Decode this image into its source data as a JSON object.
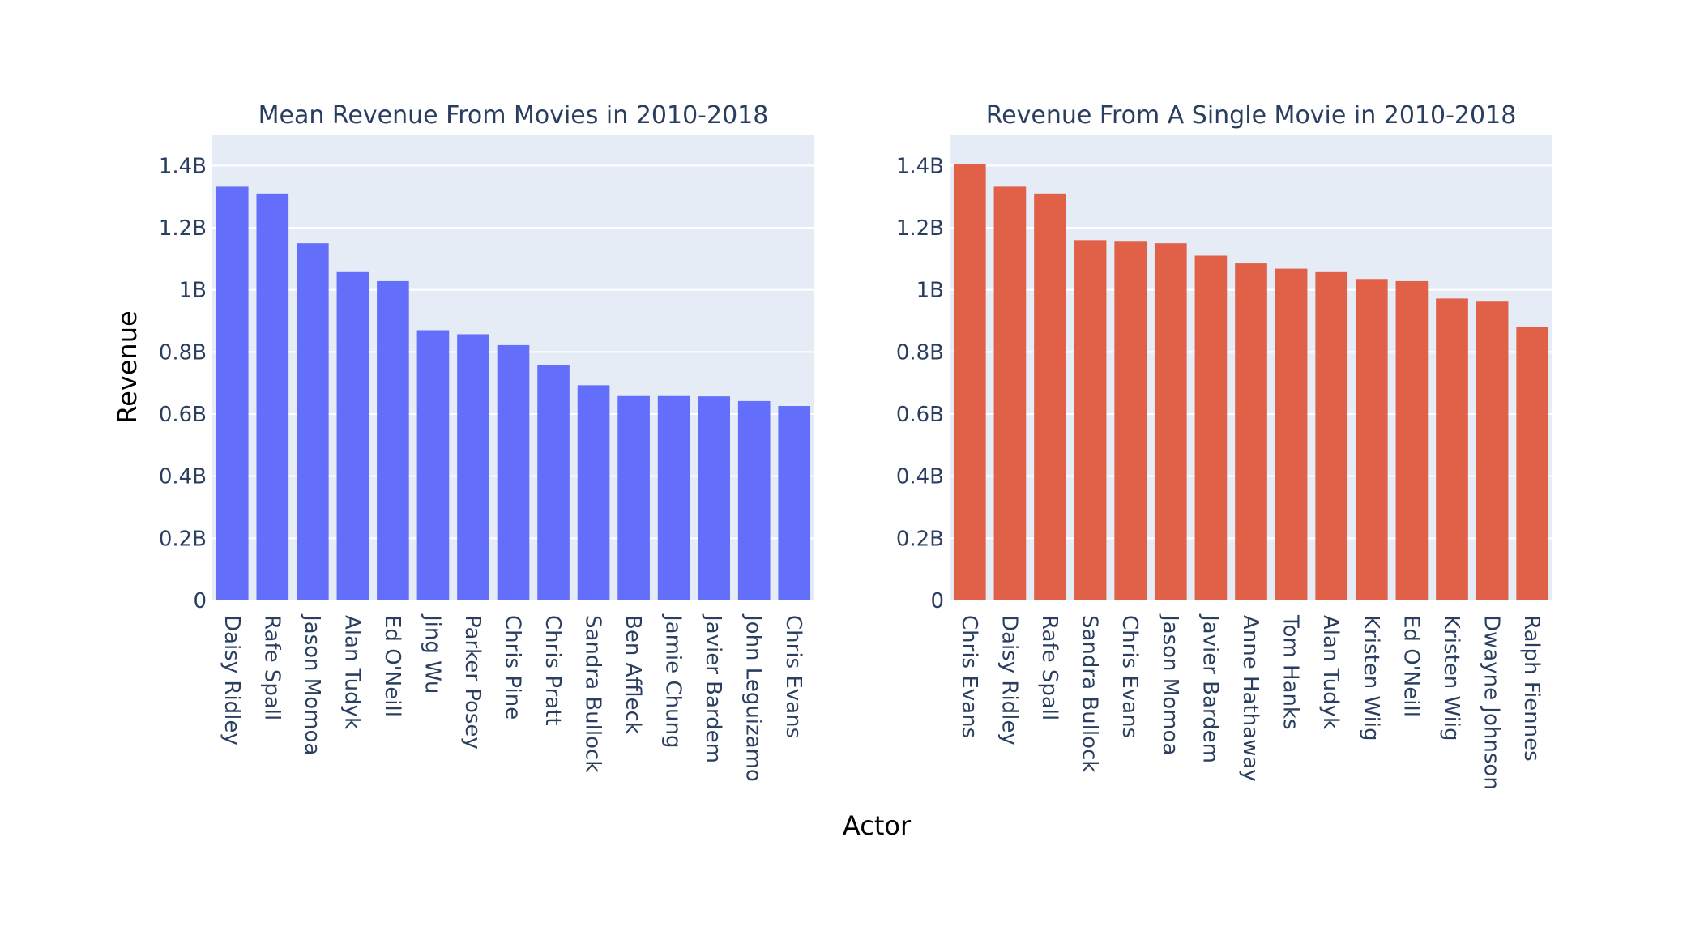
{
  "figure": {
    "xlabel": "Actor",
    "ylabel": "Revenue",
    "plot_bg": "#e5ecf6",
    "grid_color": "#ffffff",
    "text_color": "#2a3f5f"
  },
  "chart_data": [
    {
      "type": "bar",
      "title": "Mean Revenue From Movies in 2010-2018",
      "xlabel": "Actor",
      "ylabel": "Revenue",
      "color": "#636efa",
      "ylim": [
        0,
        1500000000
      ],
      "yticks": [
        0,
        200000000,
        400000000,
        600000000,
        800000000,
        1000000000,
        1200000000,
        1400000000
      ],
      "ytick_labels": [
        "0",
        "0.2B",
        "0.4B",
        "0.6B",
        "0.8B",
        "1B",
        "1.2B",
        "1.4B"
      ],
      "grid": true,
      "categories": [
        "Daisy Ridley",
        "Rafe Spall",
        "Jason Momoa",
        "Alan Tudyk",
        "Ed O'Neill",
        "Jing Wu",
        "Parker Posey",
        "Chris Pine",
        "Chris Pratt",
        "Sandra Bullock",
        "Ben Affleck",
        "Jamie Chung",
        "Javier Bardem",
        "John Leguizamo",
        "Chris Evans"
      ],
      "values": [
        1332000000,
        1310000000,
        1150000000,
        1057000000,
        1028000000,
        870000000,
        857000000,
        822000000,
        757000000,
        693000000,
        658000000,
        658000000,
        657000000,
        642000000,
        626000000
      ]
    },
    {
      "type": "bar",
      "title": "Revenue From A Single Movie in 2010-2018",
      "xlabel": "Actor",
      "ylabel": "",
      "color": "#e06147",
      "ylim": [
        0,
        1500000000
      ],
      "yticks": [
        0,
        200000000,
        400000000,
        600000000,
        800000000,
        1000000000,
        1200000000,
        1400000000
      ],
      "ytick_labels": [
        "0",
        "0.2B",
        "0.4B",
        "0.6B",
        "0.8B",
        "1B",
        "1.2B",
        "1.4B"
      ],
      "grid": true,
      "categories": [
        "Chris Evans",
        "Daisy Ridley",
        "Rafe Spall",
        "Sandra Bullock",
        "Chris Evans",
        "Jason Momoa",
        "Javier Bardem",
        "Anne Hathaway",
        "Tom Hanks",
        "Alan Tudyk",
        "Kristen Wiig",
        "Ed O'Neill",
        "Kristen Wiig",
        "Dwayne Johnson",
        "Ralph Fiennes"
      ],
      "values": [
        1405000000,
        1332000000,
        1310000000,
        1160000000,
        1155000000,
        1150000000,
        1110000000,
        1085000000,
        1068000000,
        1057000000,
        1035000000,
        1028000000,
        972000000,
        962000000,
        880000000
      ]
    }
  ]
}
